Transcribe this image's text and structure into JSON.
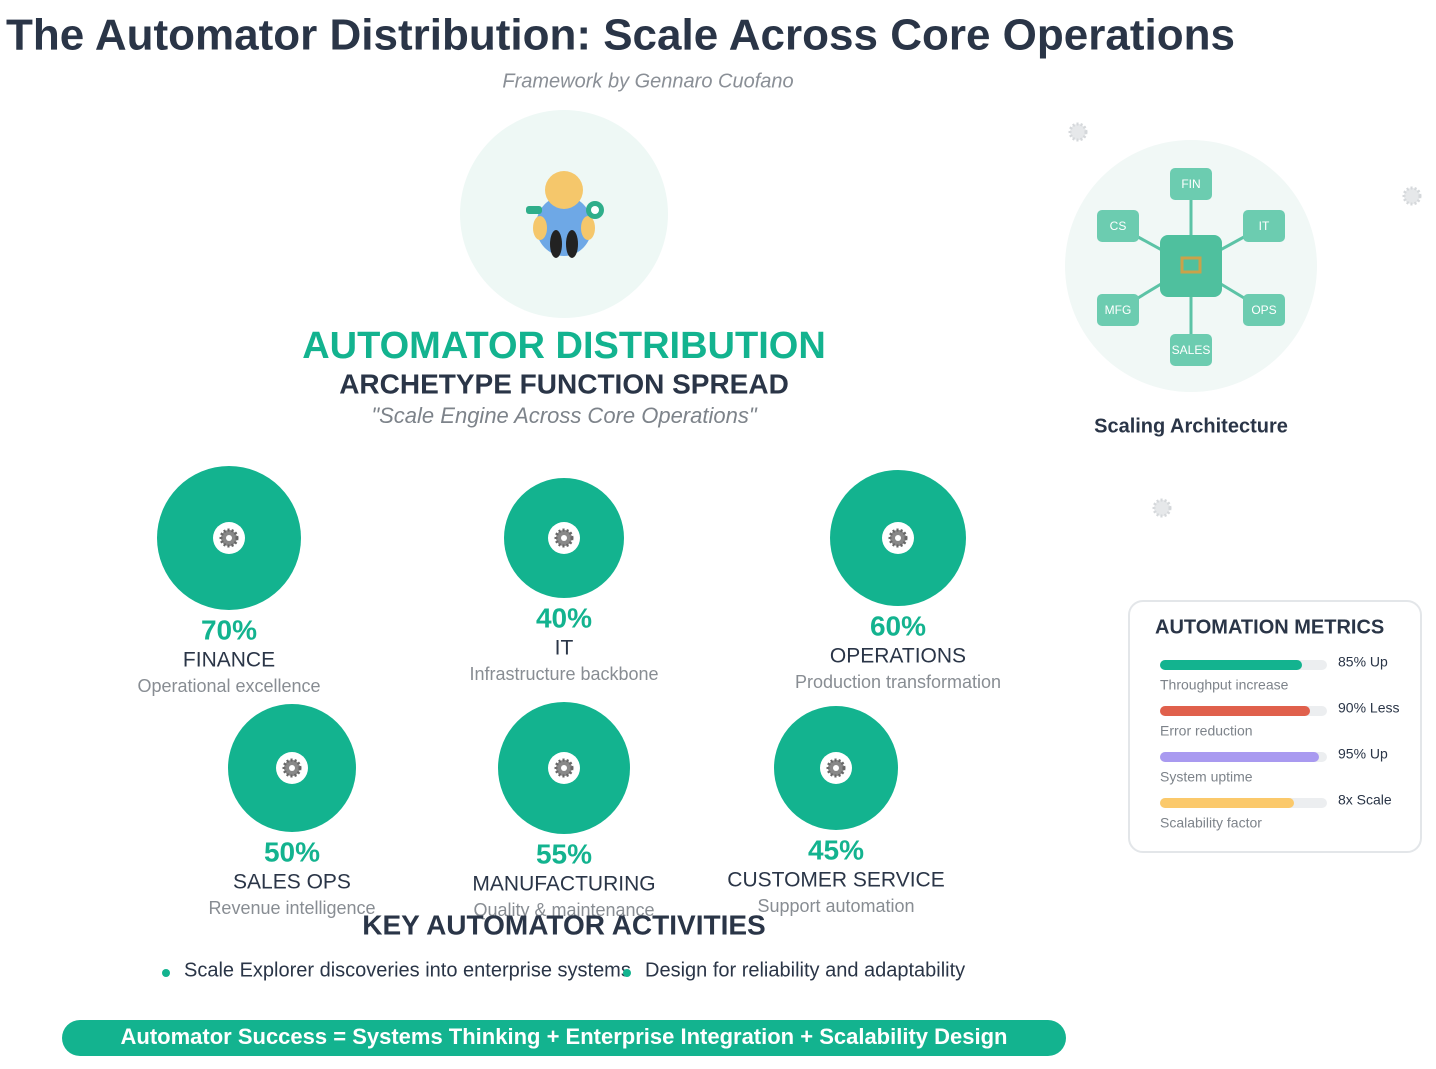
{
  "header": {
    "title": "The Automator Distribution: Scale Across Core Operations",
    "subtitle": "Framework by Gennaro Cuofano"
  },
  "hero": {
    "title": "AUTOMATOR DISTRIBUTION",
    "subtitle": "ARCHETYPE FUNCTION SPREAD",
    "tagline": "\"Scale Engine Across Core Operations\""
  },
  "functions": [
    {
      "name": "FINANCE",
      "description": "Operational excellence",
      "value": 70,
      "value_label": "70%"
    },
    {
      "name": "IT",
      "description": "Infrastructure backbone",
      "value": 40,
      "value_label": "40%"
    },
    {
      "name": "OPERATIONS",
      "description": "Production transformation",
      "value": 60,
      "value_label": "60%"
    },
    {
      "name": "SALES OPS",
      "description": "Revenue intelligence",
      "value": 50,
      "value_label": "50%"
    },
    {
      "name": "MANUFACTURING",
      "description": "Quality & maintenance",
      "value": 55,
      "value_label": "55%"
    },
    {
      "name": "CUSTOMER SERVICE",
      "description": "Support automation",
      "value": 45,
      "value_label": "45%"
    }
  ],
  "architecture": {
    "caption": "Scaling Architecture",
    "nodes": [
      "FIN",
      "IT",
      "OPS",
      "SALES",
      "MFG",
      "CS"
    ]
  },
  "metrics": {
    "title": "AUTOMATION METRICS",
    "items": [
      {
        "label": "85% Up",
        "caption": "Throughput increase"
      },
      {
        "label": "90% Less",
        "caption": "Error reduction"
      },
      {
        "label": "95% Up",
        "caption": "System uptime"
      },
      {
        "label": "8x Scale",
        "caption": "Scalability factor"
      }
    ]
  },
  "activities": {
    "title": "KEY AUTOMATOR ACTIVITIES",
    "items": [
      "Scale Explorer discoveries into enterprise systems",
      "Design for reliability and adaptability"
    ]
  },
  "formula": "Automator Success = Systems Thinking + Enterprise Integration + Scalability Design"
}
